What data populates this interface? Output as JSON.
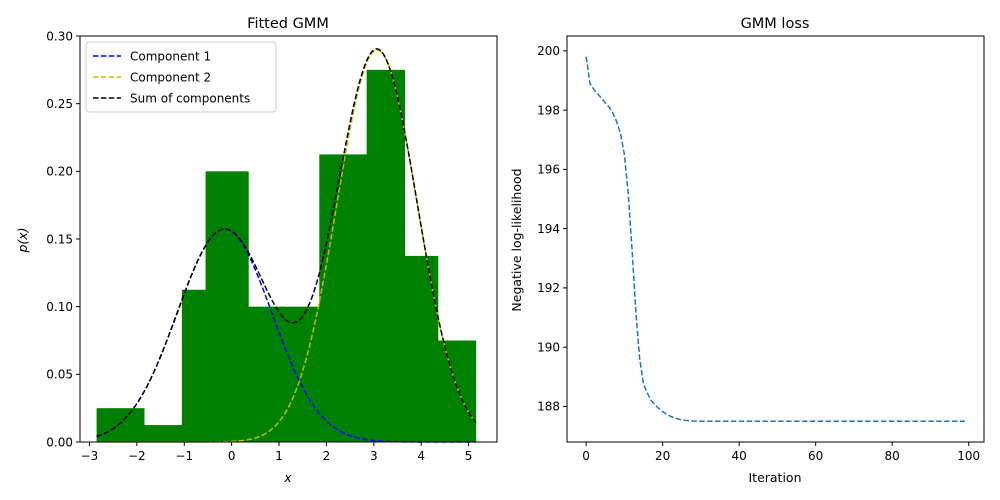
{
  "chart_data": [
    {
      "type": "bar",
      "title": "Fitted GMM",
      "xlabel": "x",
      "ylabel": "p(x)",
      "xlim": [
        -3.2,
        5.6
      ],
      "ylim": [
        0.0,
        0.3
      ],
      "xticks": [
        "−3",
        "−2",
        "−1",
        "0",
        "1",
        "2",
        "3",
        "4",
        "5"
      ],
      "xtick_values": [
        -3,
        -2,
        -1,
        0,
        1,
        2,
        3,
        4,
        5
      ],
      "yticks": [
        "0.00",
        "0.05",
        "0.10",
        "0.15",
        "0.20",
        "0.25",
        "0.30"
      ],
      "ytick_values": [
        0.0,
        0.05,
        0.1,
        0.15,
        0.2,
        0.25,
        0.3
      ],
      "grid": false,
      "legend_position": "top-left",
      "histogram": {
        "color": "#008000",
        "bins": [
          {
            "x0": -2.85,
            "x1": -1.85,
            "value": 0.025
          },
          {
            "x0": -1.85,
            "x1": -1.05,
            "value": 0.0125
          },
          {
            "x0": -1.05,
            "x1": -0.55,
            "value": 0.1125
          },
          {
            "x0": -0.55,
            "x1": 0.35,
            "value": 0.2
          },
          {
            "x0": 0.35,
            "x1": 1.85,
            "value": 0.1
          },
          {
            "x0": 1.85,
            "x1": 2.85,
            "value": 0.2125
          },
          {
            "x0": 2.85,
            "x1": 3.65,
            "value": 0.275
          },
          {
            "x0": 3.65,
            "x1": 4.35,
            "value": 0.1375
          },
          {
            "x0": 4.35,
            "x1": 5.15,
            "value": 0.075
          }
        ]
      },
      "series": [
        {
          "name": "Component 1",
          "color": "#0000ff",
          "style": "dashed",
          "mean": -0.15,
          "std": 1.0,
          "weight": 0.394
        },
        {
          "name": "Component 2",
          "color": "#bfbf00",
          "style": "dashed",
          "mean": 3.07,
          "std": 0.85,
          "weight": 0.617
        },
        {
          "name": "Sum of components",
          "color": "#000000",
          "style": "dashed",
          "sum_of": [
            0,
            1
          ]
        }
      ],
      "x_range": [
        -2.85,
        5.15
      ]
    },
    {
      "type": "line",
      "title": "GMM loss",
      "xlabel": "Iteration",
      "ylabel": "Negative log-likelihood",
      "xlim": [
        -5,
        104
      ],
      "ylim": [
        186.8,
        200.5
      ],
      "xticks": [
        "0",
        "20",
        "40",
        "60",
        "80",
        "100"
      ],
      "xtick_values": [
        0,
        20,
        40,
        60,
        80,
        100
      ],
      "yticks": [
        "188",
        "190",
        "192",
        "194",
        "196",
        "198",
        "200"
      ],
      "ytick_values": [
        188,
        190,
        192,
        194,
        196,
        198,
        200
      ],
      "grid": false,
      "series": [
        {
          "color": "#1f77b4",
          "style": "dashed",
          "x": [
            0,
            1,
            2,
            3,
            4,
            5,
            6,
            7,
            8,
            9,
            10,
            11,
            12,
            13,
            14,
            15,
            16,
            17,
            18,
            19,
            20,
            21,
            22,
            23,
            24,
            25,
            26,
            27,
            28,
            30,
            35,
            40,
            50,
            60,
            70,
            80,
            90,
            99
          ],
          "y": [
            199.8,
            198.9,
            198.7,
            198.55,
            198.4,
            198.25,
            198.1,
            197.9,
            197.6,
            197.2,
            196.5,
            195.2,
            193.3,
            191.2,
            189.6,
            188.75,
            188.45,
            188.2,
            188.05,
            187.93,
            187.83,
            187.74,
            187.67,
            187.62,
            187.58,
            187.55,
            187.53,
            187.52,
            187.51,
            187.5,
            187.5,
            187.5,
            187.5,
            187.5,
            187.5,
            187.5,
            187.5,
            187.5
          ]
        }
      ]
    }
  ]
}
